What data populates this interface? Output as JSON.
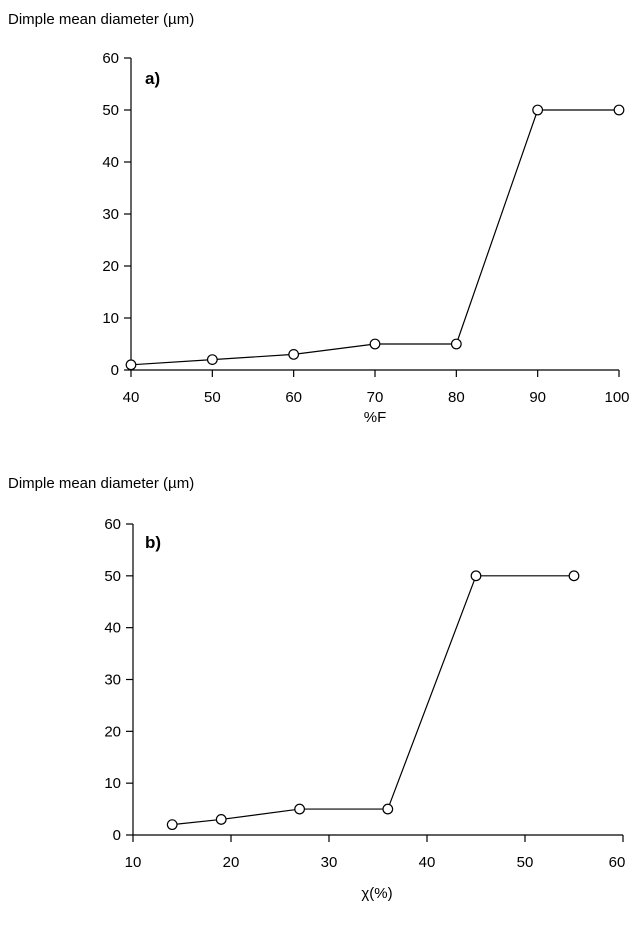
{
  "chart_data": [
    {
      "type": "line",
      "panel_label": "a)",
      "ylabel": "Dimple mean diameter (µm)",
      "xlabel": "%F",
      "xlim": [
        40,
        100
      ],
      "ylim": [
        0,
        60
      ],
      "x_ticks": [
        "40",
        "50",
        "60",
        "70",
        "80",
        "90",
        "100"
      ],
      "y_ticks": [
        "0",
        "10",
        "20",
        "30",
        "40",
        "50",
        "60"
      ],
      "series": [
        {
          "x": [
            40,
            50,
            60,
            70,
            80,
            90,
            100
          ],
          "values": [
            1,
            2,
            3,
            5,
            5,
            50,
            50
          ]
        }
      ]
    },
    {
      "type": "line",
      "panel_label": "b)",
      "ylabel": "Dimple mean diameter (µm)",
      "xlabel": "χ(%)",
      "xlim": [
        10,
        60
      ],
      "ylim": [
        0,
        60
      ],
      "x_ticks": [
        "10",
        "20",
        "30",
        "40",
        "50",
        "60"
      ],
      "y_ticks": [
        "0",
        "10",
        "20",
        "30",
        "40",
        "50",
        "60"
      ],
      "series": [
        {
          "x": [
            14,
            19,
            27,
            36,
            45,
            55
          ],
          "values": [
            2,
            3,
            5,
            5,
            50,
            50
          ]
        }
      ]
    }
  ]
}
